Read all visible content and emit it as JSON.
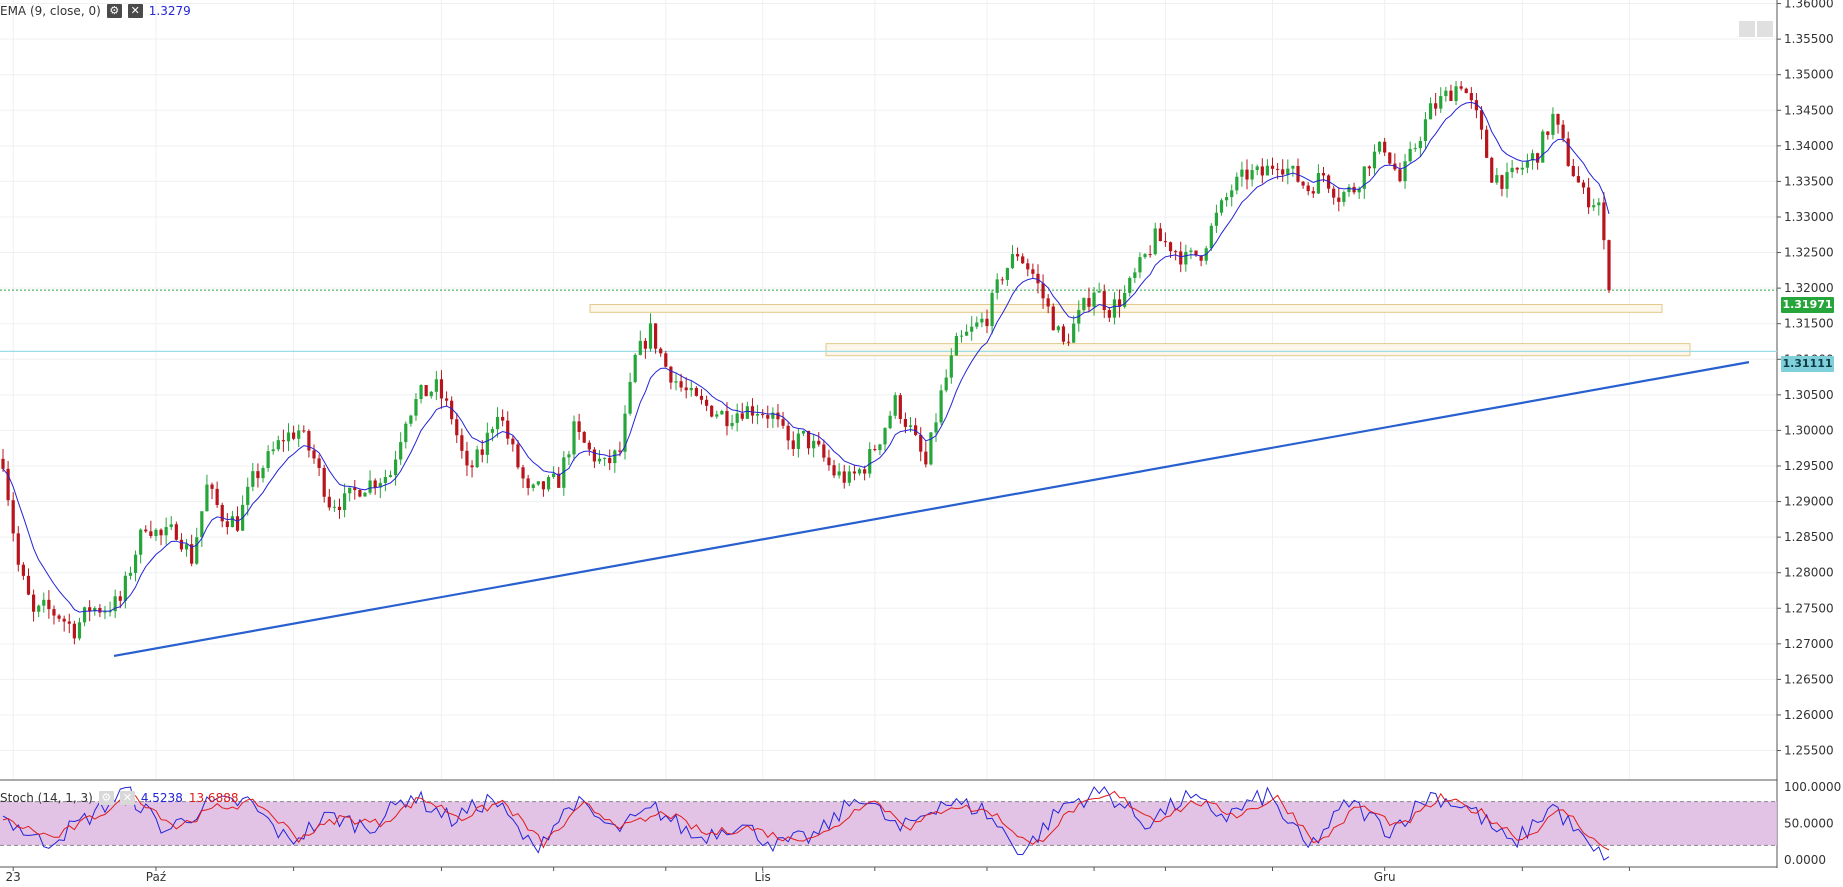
{
  "indicators": {
    "ema": {
      "label": "EMA (9, close, 0)",
      "value": "1.3279",
      "color": "#2323d8"
    },
    "stoch": {
      "label": "Stoch (14, 1, 3)",
      "k_value": "4.5238",
      "d_value": "13.6888",
      "k_color": "#2323d8",
      "d_color": "#e01a1a"
    }
  },
  "price_tags": {
    "last": {
      "text": "1.31971",
      "color": "#26a53a"
    },
    "level": {
      "text": "1.31111",
      "color": "#7fd0db"
    }
  },
  "colors": {
    "up": "#26a53a",
    "down": "#b8141c",
    "ema": "#2323d8",
    "trendline": "#2860d0",
    "zone_border": "#e3c98b",
    "zone_fill": "#fdf7e9",
    "stoch_band": "#ddb8e2"
  },
  "chart_data": [
    {
      "type": "candlestick",
      "title": "",
      "xlabel": "",
      "ylabel": "",
      "x_tick_labels": [
        {
          "label": "23",
          "index": 2
        },
        {
          "label": "Paź",
          "index": 30
        },
        {
          "label": "Lis",
          "index": 149
        },
        {
          "label": "Gru",
          "index": 271
        }
      ],
      "y_tick_labels": [
        "1.36000",
        "1.35500",
        "1.35000",
        "1.34500",
        "1.34000",
        "1.33500",
        "1.33000",
        "1.32500",
        "1.32000",
        "1.31500",
        "1.31000",
        "1.30500",
        "1.30000",
        "1.29500",
        "1.29000",
        "1.28500",
        "1.28000",
        "1.27500",
        "1.27000",
        "1.26500",
        "1.26000",
        "1.25500"
      ],
      "ylim": [
        1.251,
        1.3605
      ],
      "grid": true,
      "ema_period": 9,
      "anchors": [
        [
          0,
          1.296
        ],
        [
          3,
          1.281
        ],
        [
          6,
          1.274
        ],
        [
          8,
          1.275
        ],
        [
          11,
          1.274
        ],
        [
          14,
          1.272
        ],
        [
          17,
          1.275
        ],
        [
          20,
          1.275
        ],
        [
          23,
          1.276
        ],
        [
          26,
          1.283
        ],
        [
          28,
          1.287
        ],
        [
          31,
          1.285
        ],
        [
          34,
          1.286
        ],
        [
          37,
          1.282
        ],
        [
          40,
          1.292
        ],
        [
          43,
          1.288
        ],
        [
          46,
          1.287
        ],
        [
          49,
          1.293
        ],
        [
          52,
          1.296
        ],
        [
          55,
          1.299
        ],
        [
          58,
          1.3
        ],
        [
          61,
          1.296
        ],
        [
          64,
          1.29
        ],
        [
          67,
          1.29
        ],
        [
          70,
          1.292
        ],
        [
          73,
          1.293
        ],
        [
          76,
          1.294
        ],
        [
          79,
          1.302
        ],
        [
          82,
          1.305
        ],
        [
          85,
          1.306
        ],
        [
          88,
          1.302
        ],
        [
          91,
          1.294
        ],
        [
          94,
          1.297
        ],
        [
          97,
          1.303
        ],
        [
          100,
          1.297
        ],
        [
          103,
          1.291
        ],
        [
          106,
          1.292
        ],
        [
          109,
          1.293
        ],
        [
          112,
          1.3
        ],
        [
          115,
          1.297
        ],
        [
          118,
          1.295
        ],
        [
          121,
          1.297
        ],
        [
          124,
          1.31
        ],
        [
          127,
          1.314
        ],
        [
          130,
          1.309
        ],
        [
          133,
          1.306
        ],
        [
          136,
          1.304
        ],
        [
          139,
          1.303
        ],
        [
          142,
          1.302
        ],
        [
          145,
          1.303
        ],
        [
          148,
          1.303
        ],
        [
          151,
          1.302
        ],
        [
          154,
          1.298
        ],
        [
          157,
          1.299
        ],
        [
          160,
          1.297
        ],
        [
          163,
          1.294
        ],
        [
          166,
          1.293
        ],
        [
          169,
          1.295
        ],
        [
          172,
          1.299
        ],
        [
          175,
          1.304
        ],
        [
          178,
          1.3
        ],
        [
          181,
          1.295
        ],
        [
          184,
          1.305
        ],
        [
          187,
          1.312
        ],
        [
          190,
          1.314
        ],
        [
          193,
          1.316
        ],
        [
          196,
          1.322
        ],
        [
          199,
          1.325
        ],
        [
          202,
          1.322
        ],
        [
          205,
          1.317
        ],
        [
          208,
          1.312
        ],
        [
          211,
          1.316
        ],
        [
          214,
          1.32
        ],
        [
          217,
          1.317
        ],
        [
          220,
          1.319
        ],
        [
          223,
          1.323
        ],
        [
          226,
          1.327
        ],
        [
          229,
          1.326
        ],
        [
          232,
          1.324
        ],
        [
          235,
          1.325
        ],
        [
          238,
          1.33
        ],
        [
          241,
          1.334
        ],
        [
          244,
          1.336
        ],
        [
          247,
          1.336
        ],
        [
          250,
          1.338
        ],
        [
          253,
          1.336
        ],
        [
          256,
          1.334
        ],
        [
          259,
          1.336
        ],
        [
          262,
          1.333
        ],
        [
          265,
          1.334
        ],
        [
          268,
          1.338
        ],
        [
          271,
          1.34
        ],
        [
          274,
          1.335
        ],
        [
          277,
          1.34
        ],
        [
          280,
          1.345
        ],
        [
          283,
          1.347
        ],
        [
          286,
          1.349
        ],
        [
          289,
          1.344
        ],
        [
          292,
          1.336
        ],
        [
          295,
          1.335
        ],
        [
          298,
          1.337
        ],
        [
          301,
          1.339
        ],
        [
          304,
          1.344
        ],
        [
          307,
          1.338
        ],
        [
          310,
          1.333
        ],
        [
          313,
          1.332
        ],
        [
          315,
          1.3197
        ]
      ]
    },
    {
      "type": "line",
      "title": "",
      "xlabel": "",
      "ylabel": "",
      "y_tick_labels": [
        "100.0000",
        "50.0000",
        "0.0000"
      ],
      "ylim": [
        0,
        100
      ],
      "overbought": 80,
      "oversold": 20,
      "k_anchors": [
        [
          0,
          60
        ],
        [
          8,
          22
        ],
        [
          16,
          55
        ],
        [
          24,
          95
        ],
        [
          32,
          40
        ],
        [
          40,
          75
        ],
        [
          48,
          80
        ],
        [
          56,
          25
        ],
        [
          64,
          60
        ],
        [
          72,
          45
        ],
        [
          80,
          90
        ],
        [
          88,
          55
        ],
        [
          96,
          85
        ],
        [
          104,
          15
        ],
        [
          112,
          80
        ],
        [
          120,
          40
        ],
        [
          128,
          70
        ],
        [
          136,
          30
        ],
        [
          144,
          50
        ],
        [
          152,
          20
        ],
        [
          160,
          35
        ],
        [
          168,
          90
        ],
        [
          176,
          40
        ],
        [
          184,
          80
        ],
        [
          192,
          70
        ],
        [
          200,
          10
        ],
        [
          208,
          75
        ],
        [
          216,
          95
        ],
        [
          224,
          50
        ],
        [
          232,
          85
        ],
        [
          240,
          60
        ],
        [
          248,
          90
        ],
        [
          256,
          15
        ],
        [
          264,
          80
        ],
        [
          272,
          40
        ],
        [
          280,
          90
        ],
        [
          288,
          70
        ],
        [
          296,
          20
        ],
        [
          304,
          75
        ],
        [
          312,
          10
        ],
        [
          315,
          4.5
        ]
      ],
      "d_anchors": [
        [
          0,
          55
        ],
        [
          10,
          30
        ],
        [
          18,
          60
        ],
        [
          26,
          88
        ],
        [
          34,
          45
        ],
        [
          42,
          72
        ],
        [
          50,
          78
        ],
        [
          58,
          30
        ],
        [
          66,
          58
        ],
        [
          74,
          50
        ],
        [
          82,
          85
        ],
        [
          90,
          58
        ],
        [
          98,
          80
        ],
        [
          106,
          22
        ],
        [
          114,
          75
        ],
        [
          122,
          45
        ],
        [
          130,
          65
        ],
        [
          138,
          35
        ],
        [
          146,
          45
        ],
        [
          154,
          28
        ],
        [
          162,
          38
        ],
        [
          170,
          85
        ],
        [
          178,
          45
        ],
        [
          186,
          75
        ],
        [
          194,
          65
        ],
        [
          202,
          18
        ],
        [
          210,
          70
        ],
        [
          218,
          90
        ],
        [
          226,
          55
        ],
        [
          234,
          80
        ],
        [
          242,
          62
        ],
        [
          250,
          85
        ],
        [
          258,
          22
        ],
        [
          266,
          75
        ],
        [
          274,
          45
        ],
        [
          282,
          85
        ],
        [
          290,
          65
        ],
        [
          298,
          28
        ],
        [
          306,
          70
        ],
        [
          314,
          14
        ],
        [
          315,
          13.7
        ]
      ]
    }
  ]
}
